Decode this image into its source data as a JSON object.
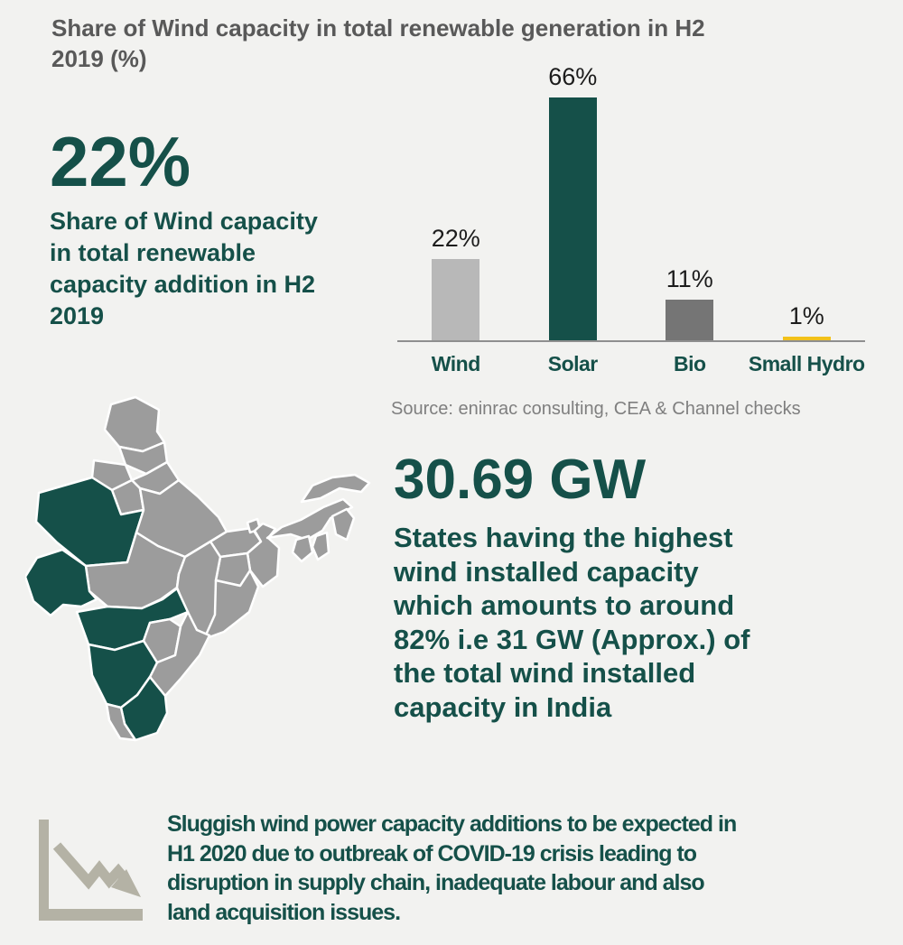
{
  "colors": {
    "background": "#f2f2f0",
    "green": "#155049",
    "title_gray": "#595959",
    "bar_light_gray": "#b8b8b8",
    "bar_dark_gray": "#757575",
    "bar_yellow": "#f2c11a",
    "axis_gray": "#8f8f8f",
    "map_gray": "#9c9c9c",
    "value_black": "#1c1c1c",
    "source_gray": "#7f7f7f",
    "icon_gray": "#b4b2a5"
  },
  "header": {
    "title_lines": [
      "Share of Wind capacity in total renewable generation in H2",
      "2019 (%)"
    ]
  },
  "stats": {
    "wind_share": {
      "value": "22%",
      "desc_lines": [
        "Share of Wind capacity",
        "in total renewable",
        "capacity addition in H2",
        "2019"
      ]
    },
    "top_states": {
      "value": "30.69 GW",
      "desc_lines": [
        "States having the highest",
        "wind installed capacity",
        "which amounts to around",
        "82% i.e 31 GW (Approx.) of",
        "the total wind installed",
        "capacity in India"
      ]
    }
  },
  "chart_data": {
    "type": "bar",
    "categories": [
      "Wind",
      "Solar",
      "Bio",
      "Small Hydro"
    ],
    "values": [
      22,
      66,
      11,
      1
    ],
    "value_labels": [
      "22%",
      "66%",
      "11%",
      "1%"
    ],
    "bar_colors": [
      "#b8b8b8",
      "#155049",
      "#757575",
      "#f2c11a"
    ],
    "title": "Share of Wind capacity in total renewable generation in H2 2019 (%)",
    "xlabel": "",
    "ylabel": "",
    "ylim": [
      0,
      70
    ],
    "grid": false,
    "legend": false
  },
  "source": "Source: eninrac consulting, CEA & Channel checks",
  "map": {
    "description": "india-states-map",
    "state_color": "#9c9c9c",
    "highlight_color": "#155049",
    "highlighted_states": [
      "Rajasthan",
      "Gujarat",
      "Maharashtra",
      "Karnataka",
      "Tamil Nadu"
    ]
  },
  "footer": {
    "icon": "declining-trend-chart-icon",
    "text_lines": [
      "Sluggish wind power capacity additions to be expected in",
      "H1 2020 due to outbreak of COVID-19 crisis leading to",
      "disruption in supply chain, inadequate labour and also",
      "land acquisition issues."
    ]
  }
}
